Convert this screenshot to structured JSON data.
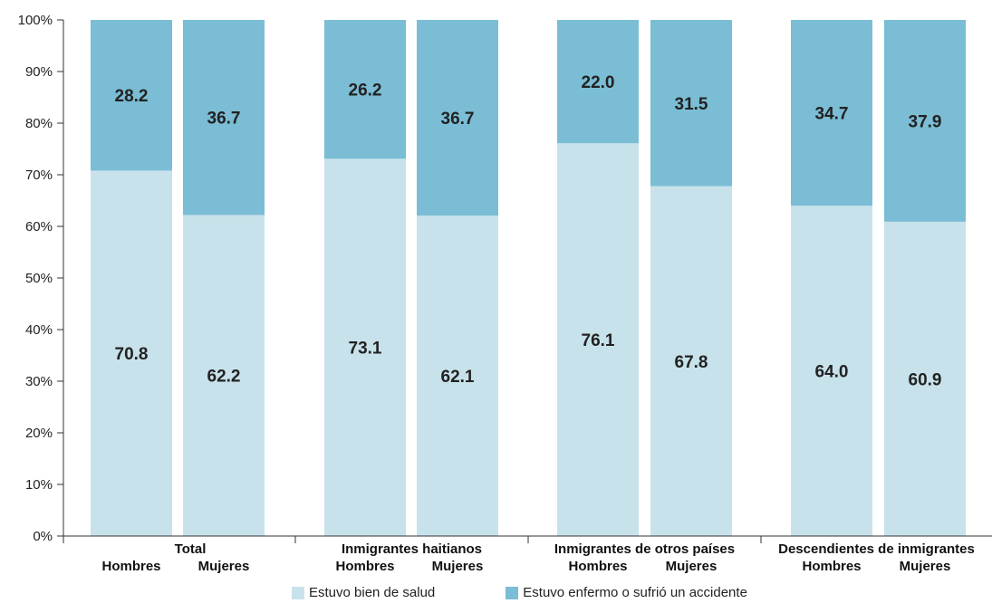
{
  "colors": {
    "bien": "#c8e2eb",
    "enfermo": "#7bbdd5",
    "axis": "#333333"
  },
  "chart_data": {
    "type": "bar",
    "stacked": true,
    "normalized": true,
    "ylim": [
      0,
      100
    ],
    "yticks": [
      "0%",
      "10%",
      "20%",
      "30%",
      "40%",
      "50%",
      "60%",
      "70%",
      "80%",
      "90%",
      "100%"
    ],
    "groups": [
      {
        "name": "Total",
        "categories": [
          "Hombres",
          "Mujeres"
        ]
      },
      {
        "name": "Inmigrantes haitianos",
        "categories": [
          "Hombres",
          "Mujeres"
        ]
      },
      {
        "name": "Inmigrantes de otros países",
        "categories": [
          "Hombres",
          "Mujeres"
        ]
      },
      {
        "name": "Descendientes de inmigrantes",
        "categories": [
          "Hombres",
          "Mujeres"
        ]
      }
    ],
    "series": [
      {
        "name": "Estuvo bien de salud",
        "values": [
          70.8,
          62.2,
          73.1,
          62.1,
          76.1,
          67.8,
          64.0,
          60.9
        ]
      },
      {
        "name": "Estuvo enfermo o sufrió un accidente",
        "values": [
          28.2,
          36.7,
          26.2,
          36.7,
          22.0,
          31.5,
          34.7,
          37.9
        ]
      }
    ],
    "legend_position": "bottom"
  }
}
